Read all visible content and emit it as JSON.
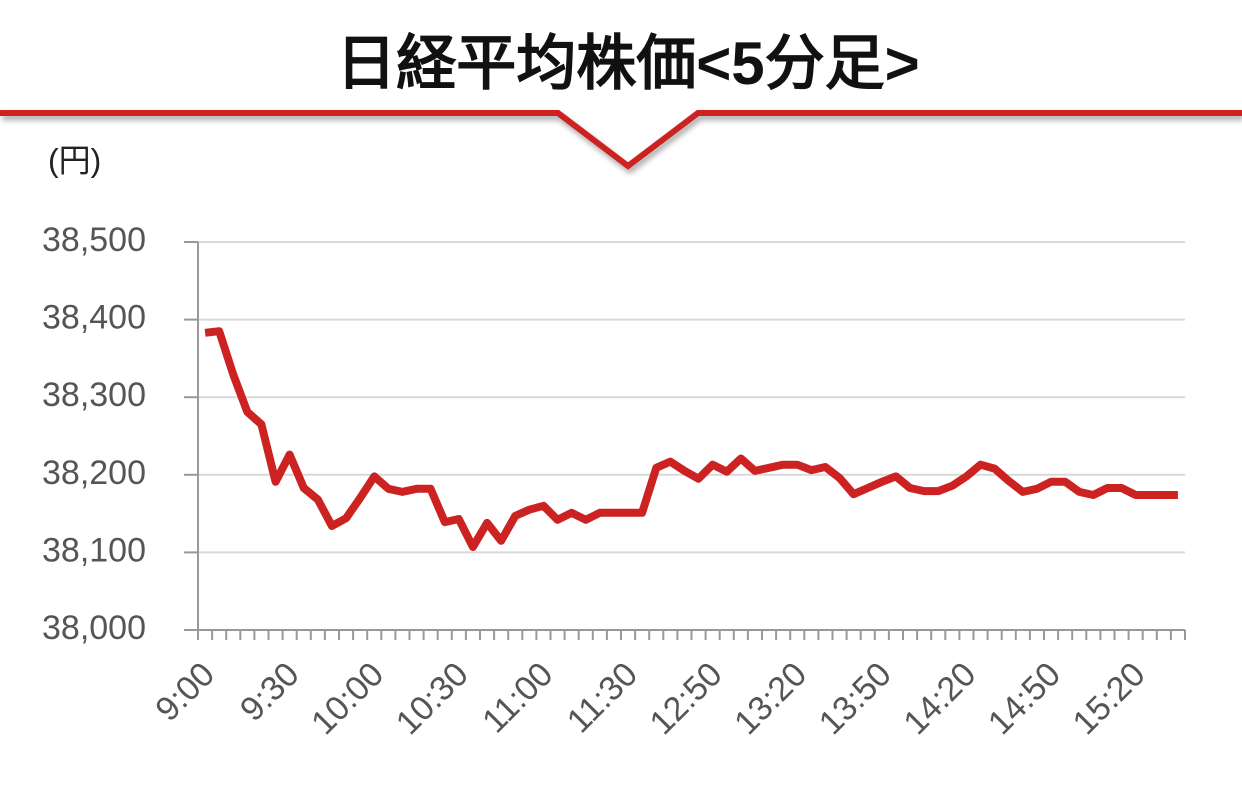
{
  "chart_data": {
    "type": "line",
    "title": "日経平均株価<5分足>",
    "y_label": "(円)",
    "categories": [
      "9:00",
      null,
      null,
      null,
      null,
      null,
      "9:30",
      null,
      null,
      null,
      null,
      null,
      "10:00",
      null,
      null,
      null,
      null,
      null,
      "10:30",
      null,
      null,
      null,
      null,
      null,
      "11:00",
      null,
      null,
      null,
      null,
      null,
      "11:30",
      null,
      null,
      null,
      null,
      null,
      "12:50",
      null,
      null,
      null,
      null,
      null,
      "13:20",
      null,
      null,
      null,
      null,
      null,
      "13:50",
      null,
      null,
      null,
      null,
      null,
      "14:20",
      null,
      null,
      null,
      null,
      null,
      "14:50",
      null,
      null,
      null,
      null,
      null,
      "15:20",
      null,
      null,
      null
    ],
    "series": [
      {
        "name": "日経平均株価",
        "color": "#cc2222",
        "values": [
          38383,
          38385,
          38329,
          38281,
          38265,
          38191,
          38226,
          38183,
          38168,
          38134,
          38144,
          38170,
          38198,
          38182,
          38178,
          38182,
          38182,
          38139,
          38143,
          38107,
          38138,
          38115,
          38147,
          38155,
          38160,
          38142,
          38151,
          38142,
          38151,
          38151,
          38151,
          38151,
          38209,
          38217,
          38205,
          38195,
          38213,
          38204,
          38221,
          38205,
          38209,
          38213,
          38213,
          38206,
          38210,
          38196,
          38175,
          38183,
          38191,
          38198,
          38183,
          38179,
          38179,
          38186,
          38198,
          38213,
          38208,
          38192,
          38178,
          38182,
          38191,
          38191,
          38178,
          38174,
          38183,
          38183,
          38174,
          38174,
          38174,
          38174
        ]
      }
    ],
    "ylim": [
      38000,
      38500
    ],
    "yticks": [
      {
        "value": 38000,
        "label": "38,000"
      },
      {
        "value": 38100,
        "label": "38,100"
      },
      {
        "value": 38200,
        "label": "38,200"
      },
      {
        "value": 38300,
        "label": "38,300"
      },
      {
        "value": 38400,
        "label": "38,400"
      },
      {
        "value": 38500,
        "label": "38,500"
      }
    ],
    "grid": true
  }
}
